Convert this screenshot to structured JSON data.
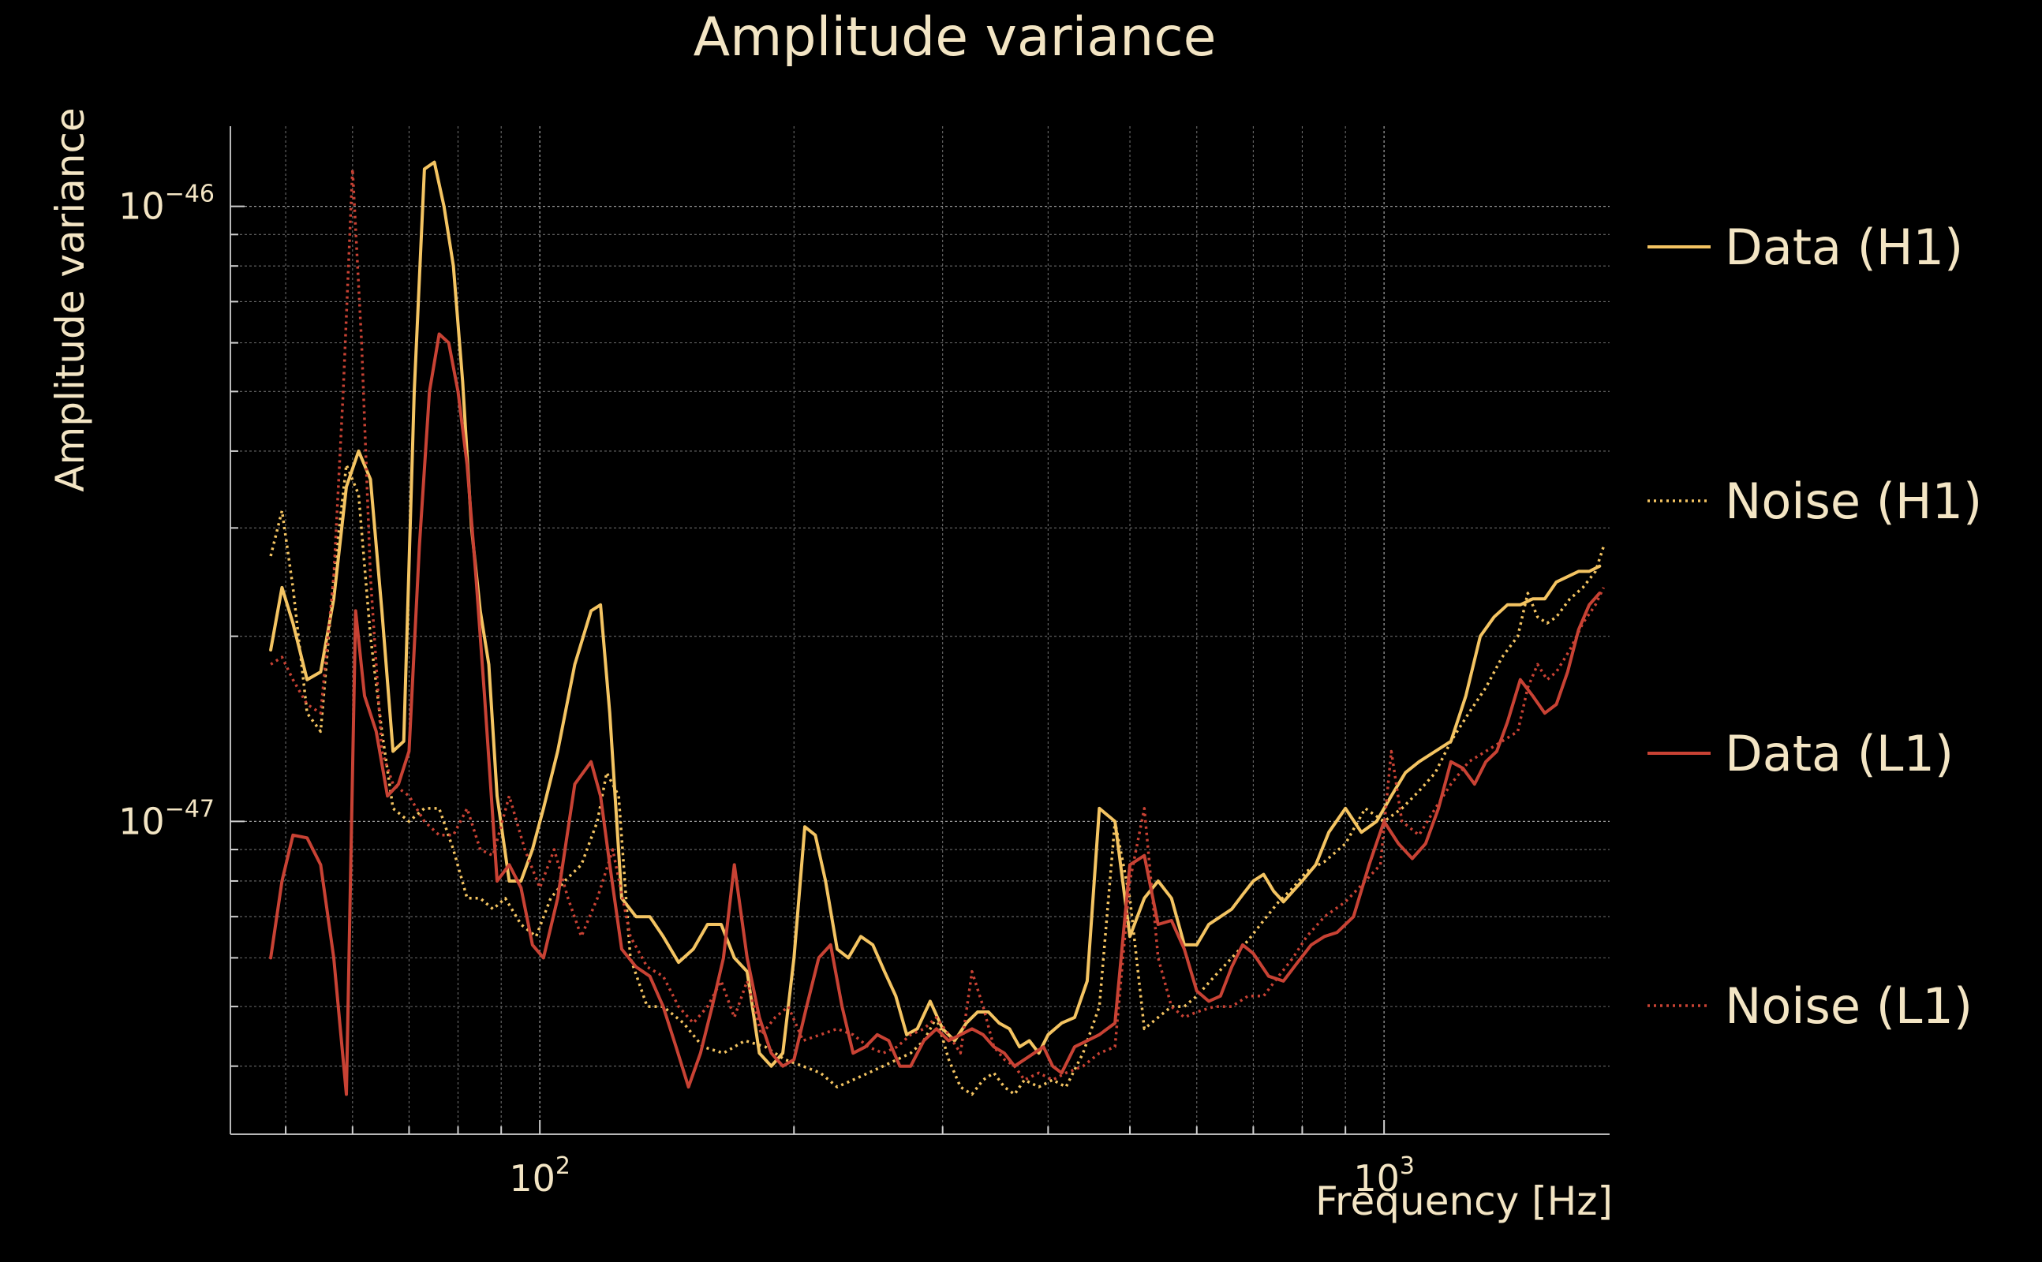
{
  "chart_data": {
    "type": "line",
    "title": "Amplitude variance",
    "xlabel": "Frequency [Hz]",
    "ylabel": "Amplitude variance",
    "x_scale": "log",
    "y_scale": "log",
    "xlim": [
      43,
      1850
    ],
    "ylim": [
      3.1e-48,
      1.35e-46
    ],
    "x_ticks": [
      {
        "base": "10",
        "exp": "2",
        "value": 100
      },
      {
        "base": "10",
        "exp": "3",
        "value": 1000
      }
    ],
    "y_ticks": [
      {
        "base": "10",
        "exp": "−46",
        "value": 1e-46
      },
      {
        "base": "10",
        "exp": "−47",
        "value": 1e-47
      }
    ],
    "grid": true,
    "legend_position": "right",
    "series": [
      {
        "name": "Data (H1)",
        "color": "#f4c462",
        "dash": "solid",
        "x": [
          48,
          49.5,
          51,
          53,
          55,
          57,
          59,
          61,
          63,
          65,
          67,
          69,
          71,
          73,
          75,
          77,
          79,
          81,
          83,
          85,
          87,
          89,
          92,
          95,
          98,
          101,
          105,
          110,
          115,
          118,
          121,
          125,
          130,
          135,
          140,
          146,
          152,
          158,
          164,
          170,
          176,
          182,
          188,
          194,
          200,
          206,
          212,
          218,
          225,
          232,
          240,
          248,
          256,
          264,
          272,
          280,
          290,
          300,
          310,
          320,
          330,
          340,
          350,
          360,
          370,
          380,
          390,
          400,
          415,
          430,
          445,
          460,
          480,
          500,
          520,
          540,
          560,
          580,
          600,
          620,
          640,
          660,
          680,
          700,
          720,
          740,
          760,
          780,
          800,
          830,
          860,
          900,
          940,
          980,
          1020,
          1060,
          1100,
          1150,
          1200,
          1250,
          1300,
          1350,
          1400,
          1450,
          1500,
          1550,
          1600,
          1650,
          1700,
          1750,
          1800
        ],
        "y": [
          1.9e-47,
          2.4e-47,
          2.1e-47,
          1.7e-47,
          1.75e-47,
          2.3e-47,
          3.5e-47,
          4e-47,
          3.6e-47,
          2.2e-47,
          1.3e-47,
          1.35e-47,
          5e-47,
          1.15e-46,
          1.18e-46,
          1e-46,
          8e-47,
          5.2e-47,
          3e-47,
          2.2e-47,
          1.8e-47,
          1.1e-47,
          8e-48,
          8e-48,
          9e-48,
          1.05e-47,
          1.3e-47,
          1.8e-47,
          2.2e-47,
          2.25e-47,
          1.5e-47,
          7.5e-48,
          7e-48,
          7e-48,
          6.5e-48,
          5.9e-48,
          6.2e-48,
          6.8e-48,
          6.8e-48,
          6e-48,
          5.7e-48,
          4.2e-48,
          4e-48,
          4.2e-48,
          6e-48,
          9.8e-48,
          9.5e-48,
          8e-48,
          6.2e-48,
          6e-48,
          6.5e-48,
          6.3e-48,
          5.7e-48,
          5.2e-48,
          4.5e-48,
          4.6e-48,
          5.1e-48,
          4.6e-48,
          4.4e-48,
          4.7e-48,
          4.9e-48,
          4.9e-48,
          4.7e-48,
          4.6e-48,
          4.3e-48,
          4.4e-48,
          4.2e-48,
          4.5e-48,
          4.7e-48,
          4.8e-48,
          5.5e-48,
          1.05e-47,
          1e-47,
          6.5e-48,
          7.5e-48,
          8e-48,
          7.5e-48,
          6.3e-48,
          6.3e-48,
          6.8e-48,
          7e-48,
          7.2e-48,
          7.6e-48,
          8e-48,
          8.2e-48,
          7.7e-48,
          7.4e-48,
          7.7e-48,
          8e-48,
          8.5e-48,
          9.6e-48,
          1.05e-47,
          9.6e-48,
          1e-47,
          1.1e-47,
          1.2e-47,
          1.25e-47,
          1.3e-47,
          1.35e-47,
          1.6e-47,
          2e-47,
          2.15e-47,
          2.25e-47,
          2.25e-47,
          2.3e-47,
          2.3e-47,
          2.45e-47,
          2.5e-47,
          2.55e-47,
          2.55e-47,
          2.6e-47
        ]
      },
      {
        "name": "Noise (H1)",
        "color": "#f4c462",
        "dash": "dotted",
        "x": [
          48,
          49.5,
          51,
          53,
          55,
          57,
          59,
          61,
          63,
          65,
          67,
          70,
          73,
          76,
          79,
          82,
          85,
          88,
          91,
          95,
          99,
          103,
          107,
          112,
          117,
          120,
          124,
          128,
          134,
          140,
          148,
          156,
          165,
          175,
          185,
          195,
          205,
          215,
          225,
          235,
          245,
          255,
          265,
          275,
          285,
          295,
          305,
          315,
          325,
          335,
          345,
          355,
          365,
          375,
          390,
          405,
          420,
          440,
          460,
          480,
          500,
          520,
          540,
          560,
          580,
          600,
          630,
          660,
          690,
          720,
          750,
          780,
          810,
          850,
          900,
          950,
          1000,
          1050,
          1100,
          1150,
          1200,
          1260,
          1320,
          1380,
          1440,
          1480,
          1520,
          1560,
          1600,
          1660,
          1720,
          1780,
          1820
        ],
        "y": [
          2.7e-47,
          3.2e-47,
          2.4e-47,
          1.5e-47,
          1.4e-47,
          2.5e-47,
          3.8e-47,
          3.4e-47,
          2e-47,
          1.4e-47,
          1.05e-47,
          1e-47,
          1.05e-47,
          1.05e-47,
          9e-48,
          7.5e-48,
          7.5e-48,
          7.2e-48,
          7.5e-48,
          6.8e-48,
          6.5e-48,
          7.5e-48,
          8e-48,
          8.5e-48,
          1e-47,
          1.2e-47,
          1.1e-47,
          6e-48,
          5e-48,
          5e-48,
          4.7e-48,
          4.3e-48,
          4.2e-48,
          4.4e-48,
          4.3e-48,
          4.1e-48,
          4e-48,
          3.9e-48,
          3.7e-48,
          3.8e-48,
          3.9e-48,
          4e-48,
          4.1e-48,
          4.2e-48,
          4.4e-48,
          4.8e-48,
          4.1e-48,
          3.7e-48,
          3.6e-48,
          3.8e-48,
          3.9e-48,
          3.7e-48,
          3.6e-48,
          3.8e-48,
          3.7e-48,
          3.8e-48,
          3.7e-48,
          4.2e-48,
          5e-48,
          1e-47,
          7.5e-48,
          4.6e-48,
          4.8e-48,
          5e-48,
          5e-48,
          5.2e-48,
          5.6e-48,
          6e-48,
          6.4e-48,
          6.9e-48,
          7.4e-48,
          7.8e-48,
          8.3e-48,
          8.6e-48,
          9.2e-48,
          1.05e-47,
          1e-47,
          1.05e-47,
          1.12e-47,
          1.2e-47,
          1.35e-47,
          1.5e-47,
          1.65e-47,
          1.85e-47,
          2e-47,
          2.35e-47,
          2.15e-47,
          2.1e-47,
          2.15e-47,
          2.3e-47,
          2.4e-47,
          2.55e-47,
          2.8e-47
        ]
      },
      {
        "name": "Data (L1)",
        "color": "#c84234",
        "dash": "solid",
        "x": [
          48,
          49.5,
          51,
          53,
          55,
          57,
          59,
          60.5,
          62,
          64,
          66,
          68,
          70,
          72,
          74,
          76,
          78,
          80,
          82,
          84,
          86,
          89,
          92,
          95,
          98,
          101,
          105,
          110,
          115,
          118,
          121,
          125,
          130,
          135,
          140,
          145,
          150,
          155,
          160,
          165,
          170,
          176,
          182,
          188,
          194,
          200,
          207,
          214,
          221,
          228,
          235,
          243,
          251,
          259,
          267,
          275,
          285,
          295,
          305,
          315,
          325,
          335,
          345,
          355,
          365,
          375,
          385,
          395,
          405,
          415,
          430,
          445,
          460,
          480,
          500,
          520,
          540,
          560,
          580,
          600,
          620,
          640,
          660,
          680,
          700,
          730,
          760,
          790,
          820,
          850,
          880,
          920,
          960,
          1000,
          1040,
          1080,
          1120,
          1160,
          1200,
          1240,
          1280,
          1320,
          1360,
          1400,
          1450,
          1500,
          1550,
          1600,
          1650,
          1700,
          1750,
          1800
        ],
        "y": [
          6e-48,
          8e-48,
          9.5e-48,
          9.4e-48,
          8.5e-48,
          6e-48,
          3.6e-48,
          2.2e-47,
          1.6e-47,
          1.4e-47,
          1.1e-47,
          1.15e-47,
          1.3e-47,
          2.8e-47,
          5e-47,
          6.2e-47,
          6e-47,
          5e-47,
          3.8e-47,
          2.5e-47,
          1.6e-47,
          8e-48,
          8.5e-48,
          7.8e-48,
          6.3e-48,
          6e-48,
          7.5e-48,
          1.15e-47,
          1.25e-47,
          1.1e-47,
          8.5e-48,
          6.2e-48,
          5.8e-48,
          5.6e-48,
          5e-48,
          4.3e-48,
          3.7e-48,
          4.2e-48,
          5e-48,
          6e-48,
          8.5e-48,
          6e-48,
          4.8e-48,
          4.2e-48,
          4e-48,
          4.1e-48,
          5e-48,
          6e-48,
          6.3e-48,
          5e-48,
          4.2e-48,
          4.3e-48,
          4.5e-48,
          4.4e-48,
          4e-48,
          4e-48,
          4.4e-48,
          4.6e-48,
          4.4e-48,
          4.5e-48,
          4.6e-48,
          4.5e-48,
          4.3e-48,
          4.2e-48,
          4e-48,
          4.1e-48,
          4.2e-48,
          4.3e-48,
          4e-48,
          3.9e-48,
          4.3e-48,
          4.4e-48,
          4.5e-48,
          4.7e-48,
          8.5e-48,
          8.8e-48,
          6.8e-48,
          6.9e-48,
          6.2e-48,
          5.3e-48,
          5.1e-48,
          5.2e-48,
          5.8e-48,
          6.3e-48,
          6.1e-48,
          5.6e-48,
          5.5e-48,
          5.9e-48,
          6.3e-48,
          6.5e-48,
          6.6e-48,
          7e-48,
          8.5e-48,
          1e-47,
          9.2e-48,
          8.7e-48,
          9.2e-48,
          1.05e-47,
          1.25e-47,
          1.22e-47,
          1.15e-47,
          1.25e-47,
          1.3e-47,
          1.45e-47,
          1.7e-47,
          1.6e-47,
          1.5e-47,
          1.55e-47,
          1.75e-47,
          2.05e-47,
          2.25e-47,
          2.35e-47
        ]
      },
      {
        "name": "Noise (L1)",
        "color": "#c84234",
        "dash": "dotted",
        "x": [
          48,
          49.5,
          51,
          53,
          55,
          57,
          58.5,
          60,
          61.5,
          63,
          65,
          67,
          70,
          73,
          76,
          79,
          82,
          85,
          88,
          92,
          96,
          100,
          104,
          108,
          112,
          117,
          122,
          128,
          134,
          140,
          146,
          152,
          158,
          164,
          170,
          176,
          183,
          190,
          197,
          205,
          215,
          225,
          235,
          245,
          255,
          265,
          275,
          285,
          295,
          305,
          315,
          325,
          335,
          345,
          355,
          365,
          375,
          390,
          405,
          420,
          440,
          460,
          480,
          500,
          520,
          540,
          560,
          580,
          600,
          630,
          660,
          690,
          720,
          750,
          780,
          810,
          850,
          900,
          950,
          990,
          1020,
          1050,
          1100,
          1150,
          1200,
          1260,
          1320,
          1380,
          1440,
          1480,
          1520,
          1560,
          1600,
          1660,
          1720,
          1780,
          1820
        ],
        "y": [
          1.8e-47,
          1.85e-47,
          1.7e-47,
          1.55e-47,
          1.5e-47,
          2.5e-47,
          5e-47,
          1.15e-46,
          6e-47,
          2.5e-47,
          1.3e-47,
          1.15e-47,
          1.1e-47,
          1e-47,
          9.5e-48,
          9.5e-48,
          1.05e-47,
          9e-48,
          8.8e-48,
          1.1e-47,
          9e-48,
          7.8e-48,
          9e-48,
          7.5e-48,
          6.5e-48,
          7.5e-48,
          9e-48,
          6.5e-48,
          5.8e-48,
          5.6e-48,
          5e-48,
          4.7e-48,
          5e-48,
          5.5e-48,
          4.8e-48,
          5.5e-48,
          4.5e-48,
          4.8e-48,
          5e-48,
          4.4e-48,
          4.5e-48,
          4.6e-48,
          4.5e-48,
          4.3e-48,
          4.2e-48,
          4.3e-48,
          4.5e-48,
          4.6e-48,
          4.8e-48,
          4.5e-48,
          4.2e-48,
          5.7e-48,
          5e-48,
          4.3e-48,
          4.1e-48,
          4e-48,
          3.8e-48,
          3.9e-48,
          3.8e-48,
          3.9e-48,
          4e-48,
          4.2e-48,
          4.3e-48,
          8e-48,
          1.05e-47,
          6e-48,
          5e-48,
          4.8e-48,
          4.9e-48,
          5e-48,
          5e-48,
          5.2e-48,
          5.2e-48,
          5.6e-48,
          6e-48,
          6.5e-48,
          7e-48,
          7.4e-48,
          8e-48,
          8.5e-48,
          1.3e-47,
          1e-47,
          9.5e-48,
          1.05e-47,
          1.15e-47,
          1.25e-47,
          1.3e-47,
          1.35e-47,
          1.4e-47,
          1.65e-47,
          1.8e-47,
          1.7e-47,
          1.75e-47,
          1.9e-47,
          2.1e-47,
          2.25e-47,
          2.4e-47
        ]
      }
    ]
  }
}
